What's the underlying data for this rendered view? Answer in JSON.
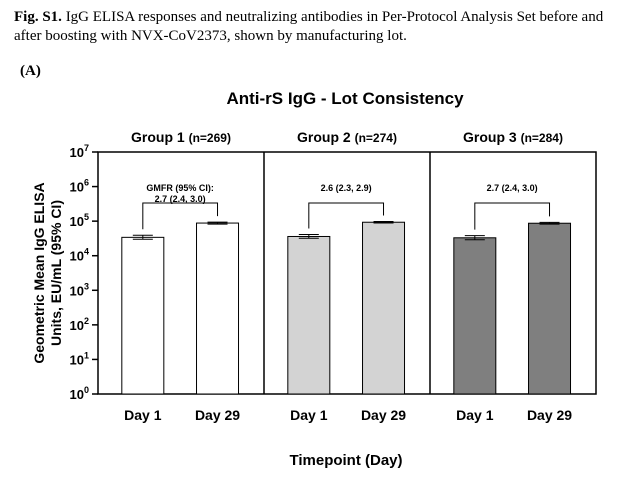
{
  "caption": {
    "label": "Fig. S1.",
    "text": " IgG ELISA responses and neutralizing antibodies in Per-Protocol Analysis Set before and after boosting with NVX-CoV2373, shown by manufacturing lot."
  },
  "panel_label": "(A)",
  "chart_data": {
    "type": "bar",
    "title": "Anti-rS IgG - Lot Consistency",
    "xlabel": "Timepoint  (Day)",
    "ylabel_line1": "Geometric Mean IgG ELISA",
    "ylabel_line2": "Units,  EU/mL (95% CI)",
    "yscale": "log10",
    "ylim": [
      1,
      10000000
    ],
    "ytick_exponents": [
      "0",
      "1",
      "2",
      "3",
      "4",
      "5",
      "6",
      "7"
    ],
    "ytick_base": "10",
    "categories": [
      "Day 1",
      "Day 29"
    ],
    "groups": [
      {
        "name": "Group 1",
        "n": "(n=269)",
        "color": "#ffffff",
        "values": [
          34000,
          88000
        ],
        "ci_low": [
          30000,
          82000
        ],
        "ci_high": [
          39000,
          94000
        ],
        "annotation_line1": "GMFR (95% CI):",
        "annotation_line2": "2.7 (2.4, 3.0)"
      },
      {
        "name": "Group 2",
        "n": "(n=274)",
        "color": "#d3d3d3",
        "values": [
          36000,
          93000
        ],
        "ci_low": [
          32000,
          88000
        ],
        "ci_high": [
          41000,
          98000
        ],
        "annotation_line1": "",
        "annotation_line2": "2.6 (2.3, 2.9)"
      },
      {
        "name": "Group 3",
        "n": "(n=284)",
        "color": "#7f7f7f",
        "values": [
          33000,
          87000
        ],
        "ci_low": [
          29000,
          82000
        ],
        "ci_high": [
          38000,
          92000
        ],
        "annotation_line1": "",
        "annotation_line2": "2.7 (2.4, 3.0)"
      }
    ],
    "grid": false,
    "legend": "none"
  }
}
